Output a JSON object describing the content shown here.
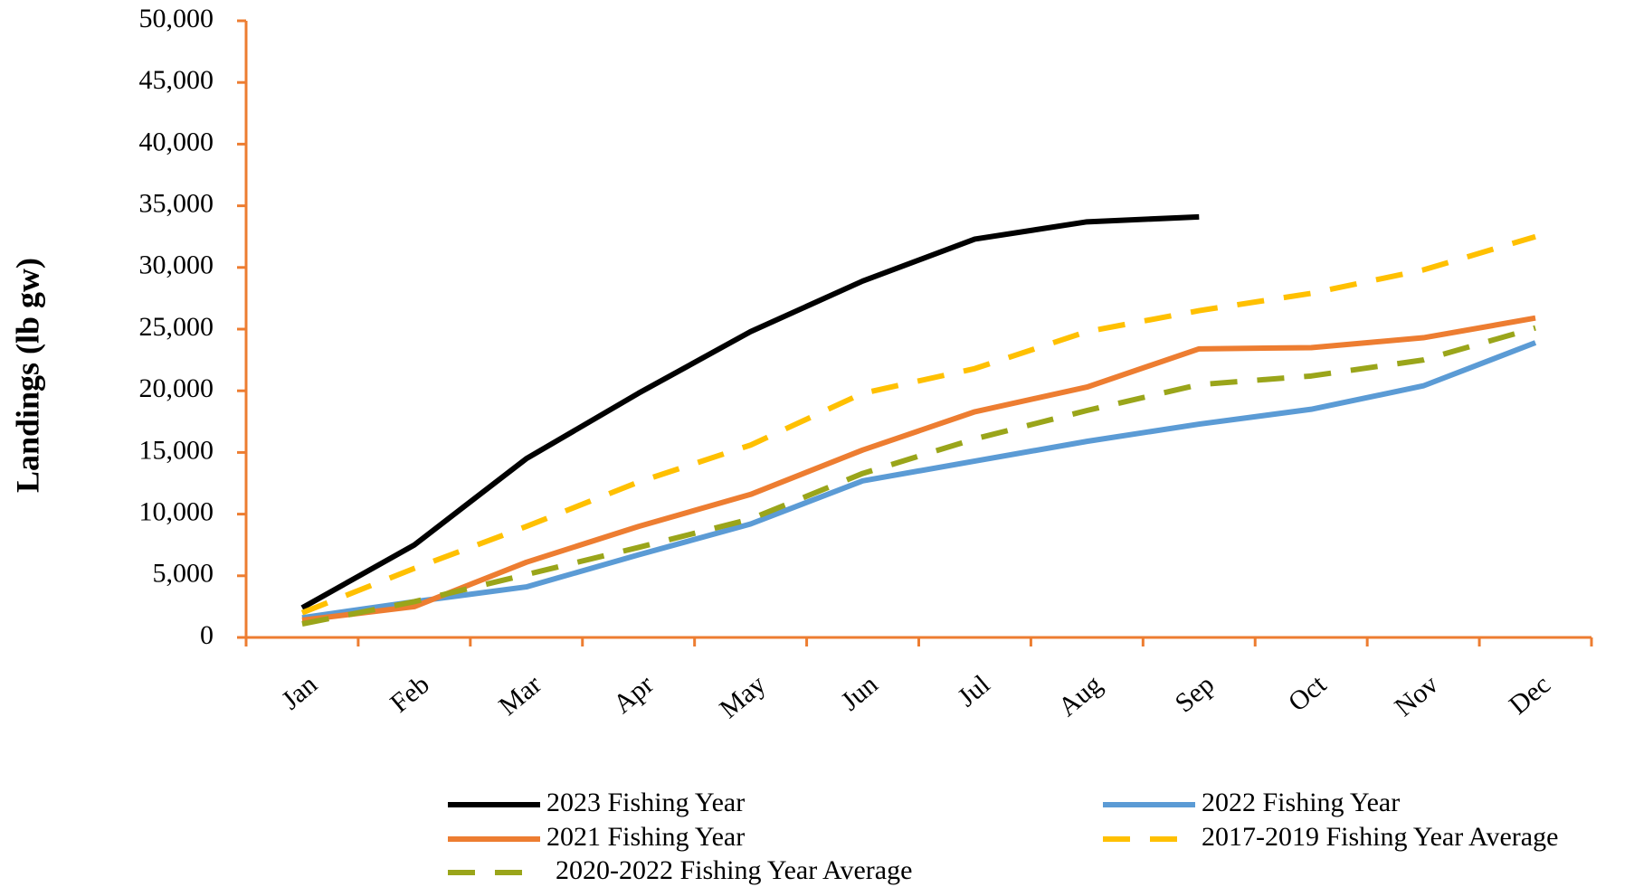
{
  "chart_data": {
    "type": "line",
    "y_label": "Landings (lb gw)",
    "categories": [
      "Jan",
      "Feb",
      "Mar",
      "Apr",
      "May",
      "Jun",
      "Jul",
      "Aug",
      "Sep",
      "Oct",
      "Nov",
      "Dec"
    ],
    "series": [
      {
        "name": "2023 Fishing Year",
        "color": "#000000",
        "dash": false,
        "values": [
          2400,
          7500,
          14500,
          19800,
          24800,
          28900,
          32300,
          33700,
          34100,
          null,
          null,
          null
        ]
      },
      {
        "name": "2022 Fishing Year",
        "color": "#5b9bd5",
        "dash": false,
        "values": [
          1600,
          2900,
          4100,
          6700,
          9200,
          12700,
          14300,
          15900,
          17300,
          18500,
          20400,
          23900
        ]
      },
      {
        "name": "2021 Fishing Year",
        "color": "#ed7d31",
        "dash": false,
        "values": [
          1400,
          2500,
          6100,
          9000,
          11600,
          15200,
          18300,
          20300,
          23400,
          23500,
          24300,
          25900
        ]
      },
      {
        "name": "2017-2019 Fishing Year Average",
        "color": "#ffc000",
        "dash": true,
        "values": [
          2000,
          5600,
          9000,
          12600,
          15600,
          19800,
          21800,
          24800,
          26500,
          27900,
          29800,
          32500
        ]
      },
      {
        "name": "2020-2022 Fishing Year Average",
        "color": "#9aa51a",
        "dash": true,
        "values": [
          1100,
          2900,
          5100,
          7300,
          9600,
          13300,
          16100,
          18400,
          20500,
          21200,
          22500,
          25100
        ]
      }
    ],
    "ylim": [
      0,
      50000
    ],
    "yticks": [
      {
        "value": 0,
        "label": "0"
      },
      {
        "value": 5000,
        "label": "5,000"
      },
      {
        "value": 10000,
        "label": "10,000"
      },
      {
        "value": 15000,
        "label": "15,000"
      },
      {
        "value": 20000,
        "label": "20,000"
      },
      {
        "value": 25000,
        "label": "25,000"
      },
      {
        "value": 30000,
        "label": "30,000"
      },
      {
        "value": 35000,
        "label": "35,000"
      },
      {
        "value": 40000,
        "label": "40,000"
      },
      {
        "value": 45000,
        "label": "45,000"
      },
      {
        "value": 50000,
        "label": "50,000"
      }
    ],
    "axis_color": "#ed7d31"
  }
}
